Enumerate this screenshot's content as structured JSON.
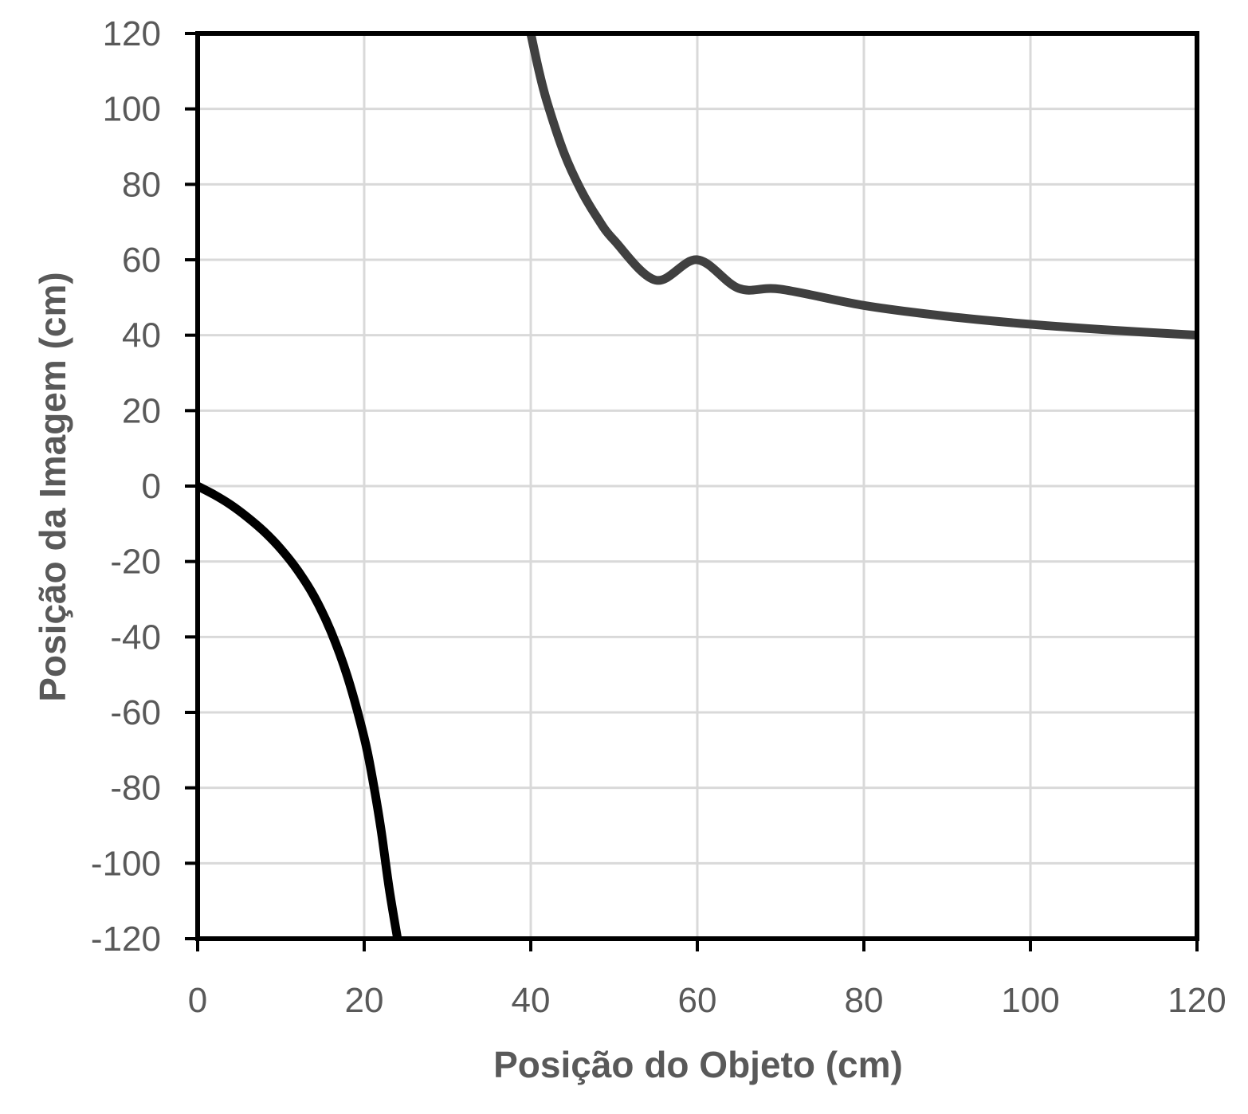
{
  "chart_data": {
    "type": "line",
    "title": "",
    "xlabel": "Posição do Objeto (cm)",
    "ylabel": "Posição da Imagem (cm)",
    "xlim": [
      0,
      120
    ],
    "ylim": [
      -120,
      120
    ],
    "x_ticks": [
      "0",
      "20",
      "40",
      "60",
      "80",
      "100",
      "120"
    ],
    "y_ticks": [
      "120",
      "100",
      "80",
      "60",
      "40",
      "20",
      "0",
      "-20",
      "-40",
      "-60",
      "-80",
      "-100",
      "-120"
    ],
    "grid": true,
    "legend": "none",
    "series": [
      {
        "color": "#000000",
        "x": [
          0,
          2,
          4,
          6,
          8,
          10,
          12,
          14,
          16,
          18,
          20,
          21,
          22,
          23,
          24
        ],
        "y": [
          0,
          -2.3,
          -5,
          -8.3,
          -12.1,
          -16.7,
          -22.3,
          -29.3,
          -38.5,
          -50.6,
          -66.7,
          -77.6,
          -90.8,
          -106.7,
          -120
        ]
      },
      {
        "color": "#404040",
        "x": [
          40,
          41,
          42,
          44,
          46,
          48,
          50,
          55,
          60,
          65,
          70,
          80,
          90,
          100,
          110,
          120
        ],
        "y": [
          120,
          109.9,
          101.5,
          88.3,
          78.6,
          71.1,
          65.2,
          54.6,
          60,
          52.4,
          52.2,
          47.9,
          45,
          42.9,
          41.3,
          40
        ]
      }
    ]
  }
}
